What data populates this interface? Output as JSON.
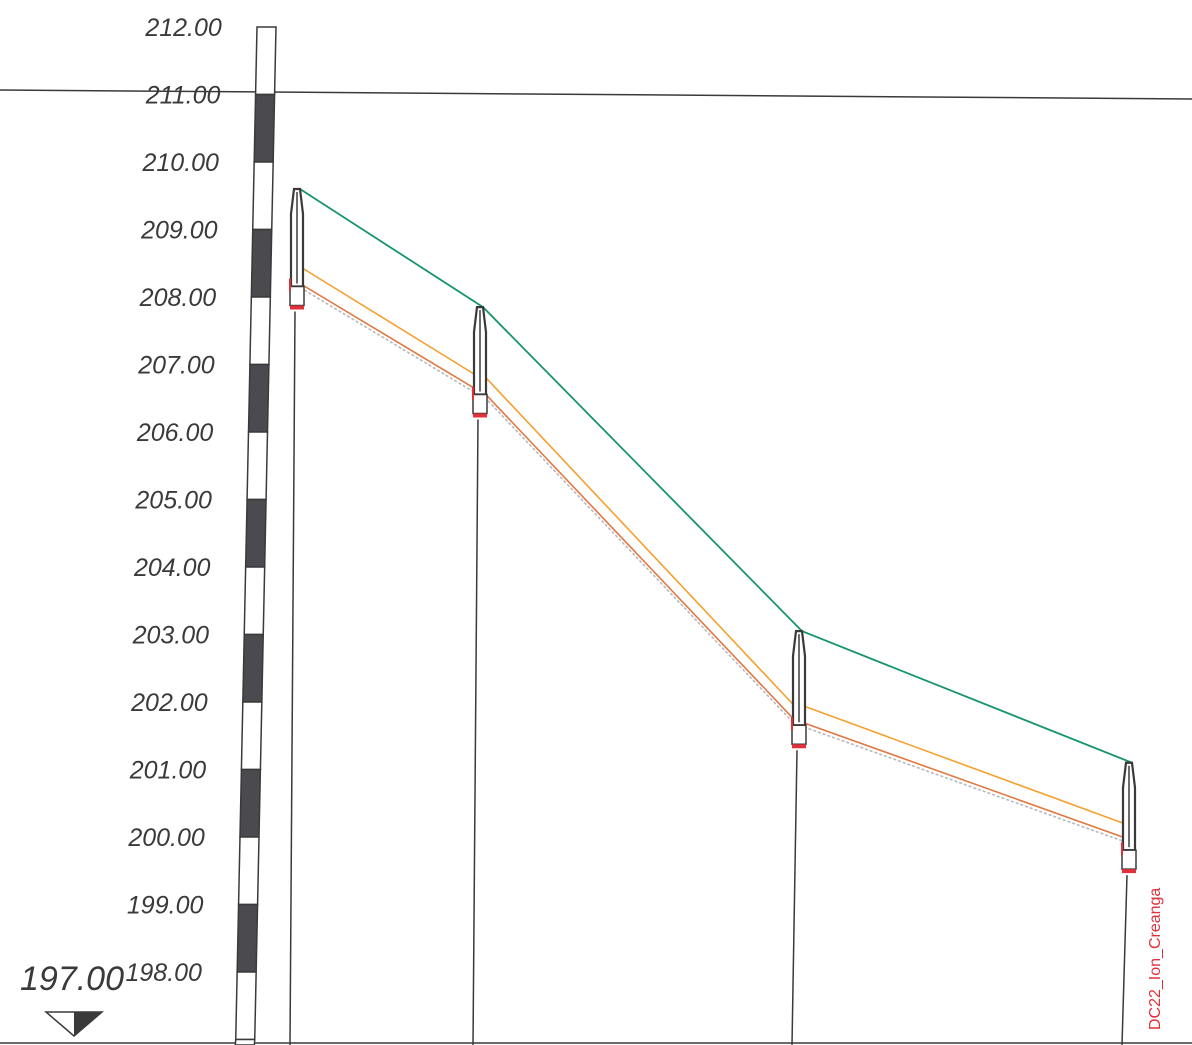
{
  "profile": {
    "elevation_scale": {
      "labels": [
        "212.00",
        "211.00",
        "210.00",
        "209.00",
        "208.00",
        "207.00",
        "206.00",
        "205.00",
        "204.00",
        "203.00",
        "202.00",
        "201.00",
        "200.00",
        "199.00",
        "198.00"
      ],
      "values": [
        212,
        211,
        210,
        209,
        208,
        207,
        206,
        205,
        204,
        203,
        202,
        201,
        200,
        199,
        198
      ]
    },
    "datum": {
      "label": "197.00"
    },
    "manholes": [
      {
        "ground": 209.6,
        "invert_in": 208.45,
        "invert_out": 208.2
      },
      {
        "ground": 207.85,
        "invert_in": 206.85,
        "invert_out": 206.6
      },
      {
        "ground": 203.05,
        "invert_in": 201.95,
        "invert_out": 201.7
      },
      {
        "ground": 201.1,
        "invert_in": 200.2,
        "invert_out": 199.85
      }
    ],
    "station_label": "DC22_Ion_Creanga",
    "colors": {
      "ground_line": "#17946e",
      "pipe_crown": "#f5a030",
      "pipe_invert": "#e07840",
      "invert_marker": "#e0303a",
      "structure": "#3a3a3a",
      "scale_dark": "#4a4a4f"
    }
  }
}
